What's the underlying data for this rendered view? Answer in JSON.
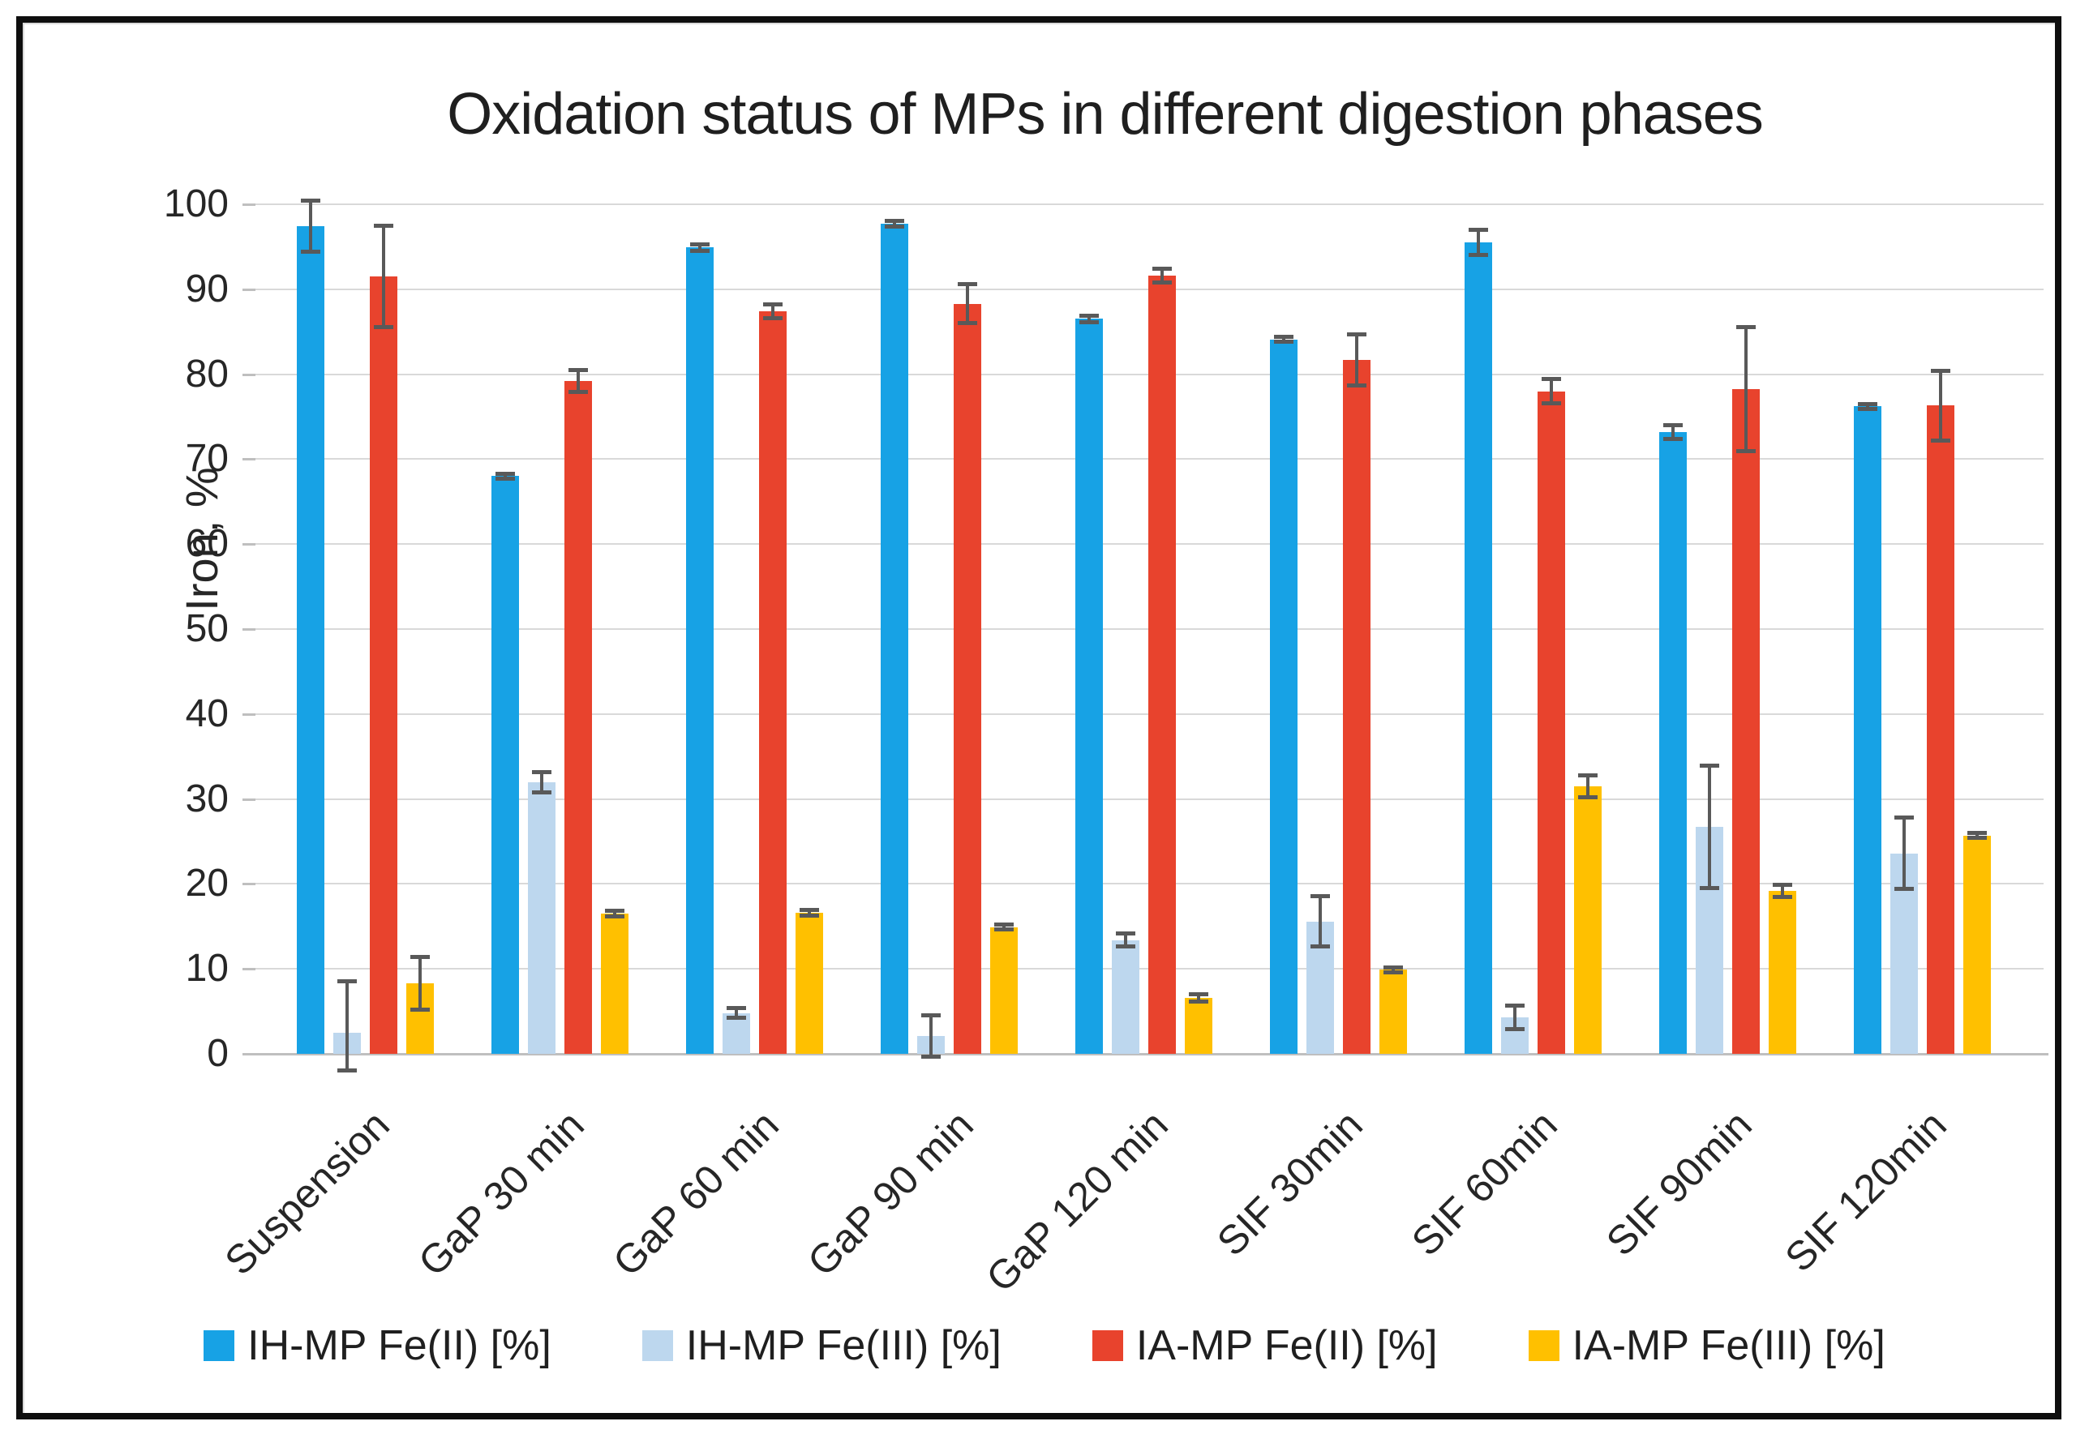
{
  "chart_data": {
    "type": "bar",
    "title": "Oxidation status of MPs in different digestion phases",
    "xlabel": "",
    "ylabel": "Iron, %",
    "ylim": [
      0,
      100
    ],
    "y_ticks": [
      0,
      10,
      20,
      30,
      40,
      50,
      60,
      70,
      80,
      90,
      100
    ],
    "grid": "horizontal",
    "legend_position": "bottom",
    "categories": [
      "Suspension",
      "GaP 30 min",
      "GaP 60 min",
      "GaP 90 min",
      "GaP 120 min",
      "SIF 30min",
      "SIF 60min",
      "SIF 90min",
      "SIF 120min"
    ],
    "series": [
      {
        "name": "IH-MP Fe(II) [%]",
        "color": "#17A2E5",
        "values": [
          97.4,
          68.0,
          94.9,
          97.7,
          86.5,
          84.1,
          95.5,
          73.2,
          76.2
        ],
        "errors": [
          3.0,
          0.3,
          0.4,
          0.3,
          0.4,
          0.3,
          1.5,
          0.8,
          0.3
        ]
      },
      {
        "name": "IH-MP Fe(III) [%]",
        "color": "#BDD7EE",
        "values": [
          2.5,
          32.0,
          4.8,
          2.1,
          13.4,
          15.6,
          4.3,
          26.7,
          23.6
        ],
        "errors": [
          6.0,
          1.2,
          0.6,
          2.4,
          0.8,
          3.0,
          1.4,
          7.2,
          4.2
        ]
      },
      {
        "name": "IA-MP Fe(II) [%]",
        "color": "#E8432D",
        "values": [
          91.5,
          79.2,
          87.4,
          88.3,
          91.6,
          81.7,
          78.0,
          78.2,
          76.3
        ],
        "errors": [
          6.0,
          1.3,
          0.8,
          2.3,
          0.8,
          3.0,
          1.4,
          7.3,
          4.1
        ]
      },
      {
        "name": "IA-MP Fe(III) [%]",
        "color": "#FFC000",
        "values": [
          8.3,
          16.5,
          16.6,
          14.9,
          6.6,
          9.9,
          31.5,
          19.2,
          25.7
        ],
        "errors": [
          3.1,
          0.3,
          0.3,
          0.3,
          0.4,
          0.3,
          1.3,
          0.7,
          0.3
        ]
      }
    ],
    "error_bar_color": "#595959",
    "gridline_color": "#D9D9D9",
    "axis_line_color": "#BFBFBF"
  }
}
